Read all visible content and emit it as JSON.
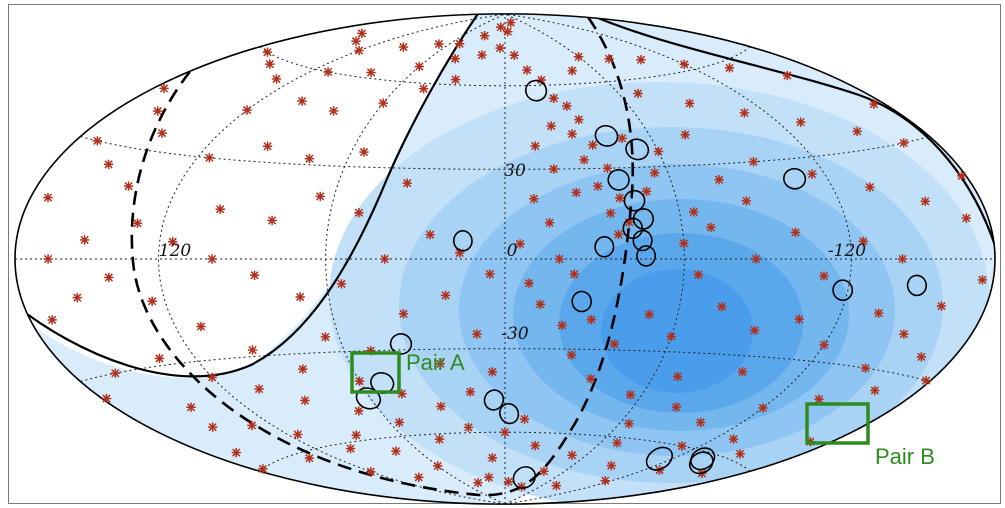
{
  "chart_data": {
    "type": "scatter",
    "projection": "hammer-aitoff",
    "grid": true,
    "lon_ticks": [
      120,
      0,
      -120
    ],
    "lat_ticks": [
      30,
      -30
    ],
    "tick_labels": {
      "lon_left": "120",
      "lon_center": "0",
      "lon_right": "-120",
      "lat_top": "30",
      "lat_bottom": "-30"
    },
    "colors": {
      "marker": "#b0301c",
      "exposure_levels": [
        "#d9ecfb",
        "#c2e0f8",
        "#a9d3f5",
        "#8fc5f2",
        "#74b6ee",
        "#5aa8eb",
        "#4a9deb"
      ],
      "box": "#2e8b1e",
      "curve": "#000000"
    },
    "annotations": [
      {
        "label": "Pair A",
        "lon": 58,
        "lat": -43
      },
      {
        "label": "Pair B",
        "lon": -137,
        "lat": -63
      }
    ],
    "circles": [
      {
        "lon": -17,
        "lat": 58
      },
      {
        "lon": -42,
        "lat": 41
      },
      {
        "lon": -52,
        "lat": 36
      },
      {
        "lon": -41,
        "lat": 26
      },
      {
        "lon": -45,
        "lat": 19
      },
      {
        "lon": -47,
        "lat": 13
      },
      {
        "lon": -43,
        "lat": 10
      },
      {
        "lon": -46,
        "lat": 6
      },
      {
        "lon": -33,
        "lat": 4
      },
      {
        "lon": -47,
        "lat": 1
      },
      {
        "lon": -107,
        "lat": 24
      },
      {
        "lon": -118,
        "lat": -9
      },
      {
        "lon": -147,
        "lat": -7
      },
      {
        "lon": 14,
        "lat": 6
      },
      {
        "lon": -26,
        "lat": -14
      },
      {
        "lon": 38,
        "lat": -28
      },
      {
        "lon": 51,
        "lat": -41
      },
      {
        "lon": 61,
        "lat": -46
      },
      {
        "lon": 5,
        "lat": -48
      },
      {
        "lon": -2,
        "lat": -53
      },
      {
        "lon": -24,
        "lat": -78
      },
      {
        "lon": -137,
        "lat": -62
      },
      {
        "lon": -142,
        "lat": -63
      },
      {
        "lon": -112,
        "lat": -65
      }
    ],
    "events": [
      {
        "lon": 155,
        "lat": 72
      },
      {
        "lon": 140,
        "lat": 70
      },
      {
        "lon": 120,
        "lat": 68
      },
      {
        "lon": 95,
        "lat": 72
      },
      {
        "lon": 70,
        "lat": 75
      },
      {
        "lon": 50,
        "lat": 76
      },
      {
        "lon": 30,
        "lat": 80
      },
      {
        "lon": 168,
        "lat": 60
      },
      {
        "lon": 150,
        "lat": 58
      },
      {
        "lon": 130,
        "lat": 55
      },
      {
        "lon": 110,
        "lat": 60
      },
      {
        "lon": 85,
        "lat": 62
      },
      {
        "lon": 60,
        "lat": 66
      },
      {
        "lon": 40,
        "lat": 70
      },
      {
        "lon": 20,
        "lat": 72
      },
      {
        "lon": 175,
        "lat": 45
      },
      {
        "lon": 160,
        "lat": 40
      },
      {
        "lon": 145,
        "lat": 35
      },
      {
        "lon": 170,
        "lat": 30
      },
      {
        "lon": 155,
        "lat": 25
      },
      {
        "lon": 140,
        "lat": 20
      },
      {
        "lon": 120,
        "lat": 45
      },
      {
        "lon": 100,
        "lat": 50
      },
      {
        "lon": 80,
        "lat": 48
      },
      {
        "lon": 60,
        "lat": 52
      },
      {
        "lon": 45,
        "lat": 58
      },
      {
        "lon": 30,
        "lat": 62
      },
      {
        "lon": 115,
        "lat": 30
      },
      {
        "lon": 95,
        "lat": 35
      },
      {
        "lon": 75,
        "lat": 32
      },
      {
        "lon": 55,
        "lat": 35
      },
      {
        "lon": 100,
        "lat": 15
      },
      {
        "lon": 80,
        "lat": 12
      },
      {
        "lon": 65,
        "lat": 20
      },
      {
        "lon": 50,
        "lat": 15
      },
      {
        "lon": 35,
        "lat": 25
      },
      {
        "lon": 10,
        "lat": 84
      },
      {
        "lon": -5,
        "lat": 82
      },
      {
        "lon": -20,
        "lat": 86
      },
      {
        "lon": 5,
        "lat": 75
      },
      {
        "lon": -8,
        "lat": 72
      },
      {
        "lon": -15,
        "lat": 66
      },
      {
        "lon": -22,
        "lat": 62
      },
      {
        "lon": -25,
        "lat": 55
      },
      {
        "lon": -30,
        "lat": 52
      },
      {
        "lon": -33,
        "lat": 47
      },
      {
        "lon": -28,
        "lat": 42
      },
      {
        "lon": -35,
        "lat": 38
      },
      {
        "lon": -30,
        "lat": 33
      },
      {
        "lon": -38,
        "lat": 30
      },
      {
        "lon": -33,
        "lat": 24
      },
      {
        "lon": -40,
        "lat": 20
      },
      {
        "lon": -36,
        "lat": 15
      },
      {
        "lon": -42,
        "lat": 12
      },
      {
        "lon": -38,
        "lat": 8
      },
      {
        "lon": -50,
        "lat": 22
      },
      {
        "lon": -55,
        "lat": 28
      },
      {
        "lon": -60,
        "lat": 35
      },
      {
        "lon": -48,
        "lat": 40
      },
      {
        "lon": -20,
        "lat": 45
      },
      {
        "lon": -12,
        "lat": 38
      },
      {
        "lon": -18,
        "lat": 30
      },
      {
        "lon": -25,
        "lat": 22
      },
      {
        "lon": -10,
        "lat": 20
      },
      {
        "lon": -15,
        "lat": 12
      },
      {
        "lon": -45,
        "lat": 65
      },
      {
        "lon": -60,
        "lat": 70
      },
      {
        "lon": -80,
        "lat": 68
      },
      {
        "lon": -100,
        "lat": 66
      },
      {
        "lon": -120,
        "lat": 62
      },
      {
        "lon": -140,
        "lat": 58
      },
      {
        "lon": -160,
        "lat": 52
      },
      {
        "lon": -175,
        "lat": 40
      },
      {
        "lon": -165,
        "lat": 30
      },
      {
        "lon": -150,
        "lat": 35
      },
      {
        "lon": -130,
        "lat": 40
      },
      {
        "lon": -110,
        "lat": 45
      },
      {
        "lon": -90,
        "lat": 50
      },
      {
        "lon": -70,
        "lat": 55
      },
      {
        "lon": -75,
        "lat": 40
      },
      {
        "lon": -95,
        "lat": 30
      },
      {
        "lon": -115,
        "lat": 25
      },
      {
        "lon": -135,
        "lat": 20
      },
      {
        "lon": -155,
        "lat": 15
      },
      {
        "lon": -170,
        "lat": 10
      },
      {
        "lon": -85,
        "lat": 18
      },
      {
        "lon": -70,
        "lat": 10
      },
      {
        "lon": -100,
        "lat": 8
      },
      {
        "lon": -125,
        "lat": 5
      },
      {
        "lon": -60,
        "lat": 5
      },
      {
        "lon": -78,
        "lat": 25
      },
      {
        "lon": -65,
        "lat": 15
      },
      {
        "lon": -175,
        "lat": -5
      },
      {
        "lon": -160,
        "lat": -12
      },
      {
        "lon": -150,
        "lat": -20
      },
      {
        "lon": -135,
        "lat": -15
      },
      {
        "lon": -120,
        "lat": -25
      },
      {
        "lon": -105,
        "lat": -18
      },
      {
        "lon": -90,
        "lat": -22
      },
      {
        "lon": -75,
        "lat": -15
      },
      {
        "lon": -60,
        "lat": -25
      },
      {
        "lon": -50,
        "lat": -18
      },
      {
        "lon": -40,
        "lat": -28
      },
      {
        "lon": -30,
        "lat": -20
      },
      {
        "lon": -25,
        "lat": -32
      },
      {
        "lon": -20,
        "lat": -22
      },
      {
        "lon": -35,
        "lat": -40
      },
      {
        "lon": -55,
        "lat": -45
      },
      {
        "lon": -80,
        "lat": -48
      },
      {
        "lon": -100,
        "lat": -52
      },
      {
        "lon": -120,
        "lat": -45
      },
      {
        "lon": -140,
        "lat": -40
      },
      {
        "lon": -160,
        "lat": -35
      },
      {
        "lon": -170,
        "lat": -50
      },
      {
        "lon": -150,
        "lat": -58
      },
      {
        "lon": -130,
        "lat": -68
      },
      {
        "lon": -110,
        "lat": -60
      },
      {
        "lon": -90,
        "lat": -70
      },
      {
        "lon": -70,
        "lat": -62
      },
      {
        "lon": -50,
        "lat": -68
      },
      {
        "lon": -40,
        "lat": -75
      },
      {
        "lon": -20,
        "lat": -65
      },
      {
        "lon": -10,
        "lat": -55
      },
      {
        "lon": 0,
        "lat": -60
      },
      {
        "lon": 10,
        "lat": -70
      },
      {
        "lon": 20,
        "lat": -58
      },
      {
        "lon": 30,
        "lat": -50
      },
      {
        "lon": 40,
        "lat": -62
      },
      {
        "lon": 55,
        "lat": -55
      },
      {
        "lon": 70,
        "lat": -50
      },
      {
        "lon": 85,
        "lat": -58
      },
      {
        "lon": 100,
        "lat": -62
      },
      {
        "lon": 115,
        "lat": -55
      },
      {
        "lon": 130,
        "lat": -50
      },
      {
        "lon": 145,
        "lat": -42
      },
      {
        "lon": 160,
        "lat": -30
      },
      {
        "lon": 170,
        "lat": -15
      },
      {
        "lon": 155,
        "lat": -10
      },
      {
        "lon": 140,
        "lat": -5
      },
      {
        "lon": 125,
        "lat": -12
      },
      {
        "lon": 110,
        "lat": -20
      },
      {
        "lon": 95,
        "lat": -28
      },
      {
        "lon": 80,
        "lat": -35
      },
      {
        "lon": 65,
        "lat": -25
      },
      {
        "lon": 50,
        "lat": -30
      },
      {
        "lon": 35,
        "lat": -18
      },
      {
        "lon": 20,
        "lat": -12
      },
      {
        "lon": 10,
        "lat": -25
      },
      {
        "lon": 5,
        "lat": -38
      },
      {
        "lon": 15,
        "lat": -45
      },
      {
        "lon": 25,
        "lat": -35
      },
      {
        "lon": 45,
        "lat": -45
      },
      {
        "lon": 60,
        "lat": -40
      },
      {
        "lon": 75,
        "lat": -65
      },
      {
        "lon": 90,
        "lat": -45
      },
      {
        "lon": 105,
        "lat": -40
      },
      {
        "lon": 120,
        "lat": -35
      },
      {
        "lon": 135,
        "lat": -28
      },
      {
        "lon": 150,
        "lat": -48
      },
      {
        "lon": 165,
        "lat": -55
      },
      {
        "lon": 135,
        "lat": -62
      },
      {
        "lon": 120,
        "lat": -70
      },
      {
        "lon": 95,
        "lat": -75
      },
      {
        "lon": 60,
        "lat": -72
      },
      {
        "lon": 40,
        "lat": -80
      },
      {
        "lon": 20,
        "lat": -78
      },
      {
        "lon": -5,
        "lat": -80
      },
      {
        "lon": -30,
        "lat": -82
      },
      {
        "lon": 5,
        "lat": -5
      },
      {
        "lon": 15,
        "lat": 2
      },
      {
        "lon": 25,
        "lat": 8
      },
      {
        "lon": 40,
        "lat": 0
      },
      {
        "lon": 55,
        "lat": -8
      },
      {
        "lon": 70,
        "lat": -12
      },
      {
        "lon": 85,
        "lat": -5
      },
      {
        "lon": 100,
        "lat": 0
      },
      {
        "lon": 115,
        "lat": 5
      },
      {
        "lon": 130,
        "lat": 10
      },
      {
        "lon": 150,
        "lat": 5
      },
      {
        "lon": 165,
        "lat": 0
      },
      {
        "lon": -5,
        "lat": 5
      },
      {
        "lon": -8,
        "lat": -8
      },
      {
        "lon": -12,
        "lat": -15
      },
      {
        "lon": -18,
        "lat": 0
      },
      {
        "lon": -23,
        "lat": -5
      },
      {
        "lon": -65,
        "lat": -5
      },
      {
        "lon": -85,
        "lat": 0
      },
      {
        "lon": -110,
        "lat": -5
      },
      {
        "lon": -140,
        "lat": 0
      },
      {
        "lon": -165,
        "lat": -25
      },
      {
        "lon": -145,
        "lat": -30
      },
      {
        "lon": -95,
        "lat": -35
      },
      {
        "lon": -70,
        "lat": -38
      },
      {
        "lon": -65,
        "lat": -55
      },
      {
        "lon": -130,
        "lat": -55
      },
      {
        "lon": -160,
        "lat": -65
      },
      {
        "lon": -115,
        "lat": -75
      },
      {
        "lon": -80,
        "lat": -80
      },
      {
        "lon": 172,
        "lat": 15
      },
      {
        "lon": 178,
        "lat": -35
      },
      {
        "lon": 175,
        "lat": -60
      },
      {
        "lon": -178,
        "lat": 20
      },
      {
        "lon": -178,
        "lat": -30
      }
    ]
  }
}
